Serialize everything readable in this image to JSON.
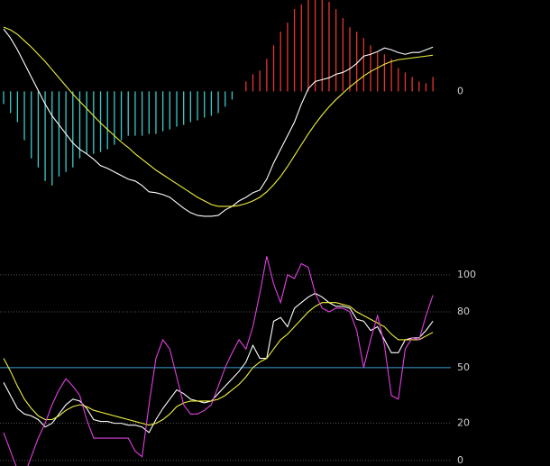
{
  "chart_data": [
    {
      "type": "combo",
      "ylim": [
        -149,
        101
      ],
      "yticks": [
        0
      ],
      "grid": false,
      "series": [
        {
          "type": "bar",
          "color": "#e8342e",
          "negative_color": "#3fc9c9",
          "values": [
            -14,
            -24,
            -34,
            -54,
            -74,
            -84,
            -99,
            -104,
            -94,
            -89,
            -84,
            -74,
            -69,
            -69,
            -67,
            -64,
            -59,
            -54,
            -49,
            -49,
            -49,
            -47,
            -47,
            -44,
            -42,
            -39,
            -37,
            -34,
            -32,
            -29,
            -27,
            -24,
            -17,
            -9,
            0,
            11,
            19,
            23,
            36,
            51,
            66,
            76,
            91,
            96,
            101,
            101,
            101,
            99,
            91,
            81,
            71,
            66,
            59,
            51,
            43,
            41,
            36,
            26,
            21,
            16,
            11,
            9,
            16
          ]
        },
        {
          "type": "line",
          "color": "#ffffff",
          "values": [
            69,
            59,
            46,
            31,
            16,
            1,
            -14,
            -27,
            -37,
            -47,
            -57,
            -64,
            -69,
            -75,
            -82,
            -85,
            -89,
            -93,
            -97,
            -99,
            -104,
            -111,
            -112,
            -114,
            -117,
            -123,
            -129,
            -134,
            -137,
            -138,
            -138,
            -137,
            -131,
            -127,
            -121,
            -117,
            -112,
            -109,
            -97,
            -79,
            -64,
            -49,
            -34,
            -14,
            3,
            11,
            13,
            15,
            19,
            21,
            25,
            31,
            39,
            41,
            44,
            48,
            46,
            43,
            41,
            43,
            43,
            46,
            49
          ]
        },
        {
          "type": "line",
          "color": "#f0f040",
          "values": [
            71,
            68,
            63,
            56,
            49,
            41,
            33,
            24,
            15,
            6,
            -3,
            -11,
            -19,
            -27,
            -35,
            -42,
            -49,
            -56,
            -62,
            -69,
            -75,
            -81,
            -87,
            -92,
            -97,
            -102,
            -107,
            -112,
            -117,
            -121,
            -125,
            -127,
            -127,
            -127,
            -126,
            -124,
            -121,
            -117,
            -111,
            -103,
            -94,
            -83,
            -71,
            -59,
            -47,
            -36,
            -26,
            -17,
            -9,
            -2,
            5,
            11,
            17,
            22,
            26,
            30,
            33,
            35,
            36,
            37,
            38,
            39,
            40
          ]
        }
      ]
    },
    {
      "type": "combo",
      "ylim": [
        -3,
        110.6
      ],
      "yticks": [
        0,
        20,
        50,
        80,
        100
      ],
      "grid": true,
      "grid_colors": [
        "#555555",
        "#555555",
        "#3a9fd0",
        "#555555",
        "#555555"
      ],
      "series": [
        {
          "type": "line",
          "color": "#ffffff",
          "values": [
            42,
            35,
            28,
            25,
            24,
            22,
            18,
            20,
            25,
            30,
            33,
            32,
            28,
            22,
            21,
            21,
            20,
            20,
            19,
            19,
            18,
            15,
            22,
            28,
            33,
            38,
            36,
            33,
            32,
            31,
            32,
            36,
            40,
            44,
            48,
            53,
            62,
            55,
            55,
            75,
            77,
            72,
            82,
            85,
            88,
            90,
            88,
            85,
            83,
            83,
            82,
            76,
            75,
            70,
            72,
            65,
            58,
            58,
            65,
            66,
            66,
            70,
            75
          ]
        },
        {
          "type": "line",
          "color": "#f0f040",
          "values": [
            55,
            48,
            40,
            33,
            28,
            24,
            22,
            22,
            24,
            27,
            29,
            30,
            29,
            27,
            26,
            25,
            24,
            23,
            22,
            21,
            20,
            19,
            20,
            22,
            25,
            29,
            31,
            32,
            32,
            32,
            32,
            33,
            35,
            38,
            41,
            45,
            50,
            53,
            55,
            60,
            65,
            68,
            72,
            76,
            80,
            83,
            85,
            85,
            85,
            84,
            83,
            80,
            78,
            76,
            74,
            72,
            68,
            65,
            65,
            65,
            65,
            67,
            69
          ]
        },
        {
          "type": "line",
          "color": "#e040e0",
          "values": [
            15,
            5,
            -5,
            -8,
            2,
            12,
            20,
            30,
            38,
            44,
            40,
            35,
            22,
            12,
            12,
            12,
            12,
            12,
            12,
            5,
            2,
            30,
            55,
            65,
            60,
            45,
            30,
            25,
            25,
            27,
            30,
            40,
            50,
            58,
            65,
            60,
            72,
            90,
            110,
            95,
            85,
            100,
            98,
            106,
            104,
            90,
            82,
            80,
            82,
            82,
            80,
            70,
            50,
            65,
            78,
            62,
            35,
            33,
            60,
            66,
            65,
            78,
            89
          ]
        }
      ]
    }
  ]
}
